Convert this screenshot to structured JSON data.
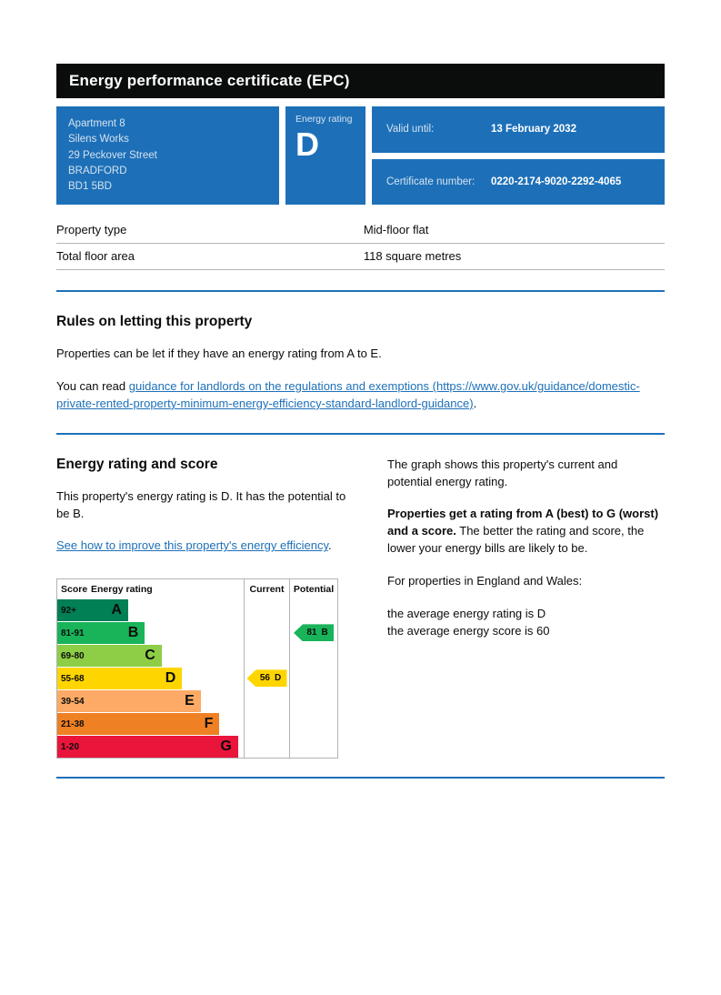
{
  "page": {
    "title": "Energy performance certificate (EPC)"
  },
  "summary": {
    "address": {
      "line1": "Apartment 8",
      "line2": "Silens Works",
      "line3": "29 Peckover Street",
      "line4": "BRADFORD",
      "line5": "BD1 5BD"
    },
    "rating_label": "Energy rating",
    "rating_value": "D",
    "valid_until_label": "Valid until:",
    "valid_until_value": "13 February 2032",
    "certificate_label": "Certificate number:",
    "certificate_value": "0220-2174-9020-2292-4065"
  },
  "details": {
    "rows": [
      {
        "label": "Property type",
        "value": "Mid-floor flat"
      },
      {
        "label": "Total floor area",
        "value": "118 square metres"
      }
    ]
  },
  "rules": {
    "heading": "Rules on letting this property",
    "paragraph1": "Properties can be let if they have an energy rating from A to E.",
    "paragraph2_prefix": "You can read ",
    "paragraph2_link": "guidance for landlords on the regulations and exemptions (https://www.gov.uk/guidance/domestic-private-rented-property-minimum-energy-efficiency-standard-landlord-guidance)",
    "paragraph2_suffix": "."
  },
  "rating_section": {
    "heading": "Energy rating and score",
    "intro": "This property's energy rating is D. It has the potential to be B.",
    "improve_link": "See how to improve this property's energy efficiency",
    "improve_suffix": ".",
    "graph_intro": "The graph shows this property's current and potential energy rating.",
    "explain_bold": "Properties get a rating from A (best) to G (worst) and a score.",
    "explain_rest": " The better the rating and score, the lower your energy bills are likely to be.",
    "region_line": "For properties in England and Wales:",
    "average_rating_line": "the average energy rating is D",
    "average_score_line": "the average energy score is 60"
  },
  "chart_data": {
    "type": "table",
    "title": "Energy rating and score chart",
    "columns": [
      "Score",
      "Energy rating",
      "Current",
      "Potential"
    ],
    "bands": [
      {
        "score": "92+",
        "letter": "A",
        "color": "#008054",
        "width_pct": 38
      },
      {
        "score": "81-91",
        "letter": "B",
        "color": "#19b459",
        "width_pct": 47
      },
      {
        "score": "69-80",
        "letter": "C",
        "color": "#8dce46",
        "width_pct": 56
      },
      {
        "score": "55-68",
        "letter": "D",
        "color": "#ffd500",
        "width_pct": 67
      },
      {
        "score": "39-54",
        "letter": "E",
        "color": "#fcaa65",
        "width_pct": 77
      },
      {
        "score": "21-38",
        "letter": "F",
        "color": "#ef8023",
        "width_pct": 87
      },
      {
        "score": "1-20",
        "letter": "G",
        "color": "#e9153b",
        "width_pct": 97
      }
    ],
    "current": {
      "score": "56",
      "letter": "D",
      "band_index": 3,
      "color": "#ffd500"
    },
    "potential": {
      "score": "81",
      "letter": "B",
      "band_index": 1,
      "color": "#19b459"
    }
  }
}
